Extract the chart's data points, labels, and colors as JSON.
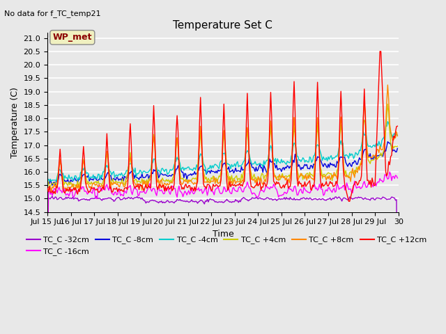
{
  "title": "Temperature Set C",
  "subtitle": "No data for f_TC_temp21",
  "xlabel": "Time",
  "ylabel": "Temperature (C)",
  "ylim": [
    14.5,
    21.2
  ],
  "xlim": [
    0,
    360
  ],
  "x_tick_labels": [
    "Jul 15 Jul",
    "16 Jul",
    "17 Jul",
    "18 Jul",
    "19 Jul",
    "20 Jul",
    "21 Jul",
    "22 Jul",
    "23 Jul",
    "24 Jul",
    "25 Jul",
    "26 Jul",
    "27 Jul",
    "28 Jul",
    "29 Jul",
    "30"
  ],
  "legend_label": "WP_met",
  "series_labels": [
    "TC_C -32cm",
    "TC_C -16cm",
    "TC_C -8cm",
    "TC_C -4cm",
    "TC_C +4cm",
    "TC_C +8cm",
    "TC_C +12cm"
  ],
  "series_colors": [
    "#9900cc",
    "#ff00ff",
    "#0000dd",
    "#00cccc",
    "#cccc00",
    "#ff8800",
    "#ff0000"
  ],
  "background_color": "#e8e8e8",
  "grid_color": "#ffffff"
}
